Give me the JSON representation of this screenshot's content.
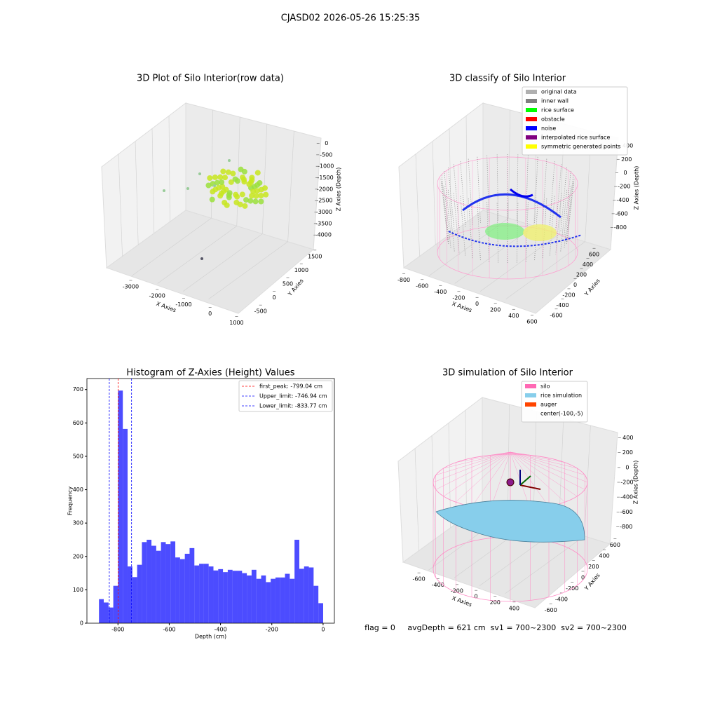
{
  "title": "CJASD02 2026-05-26 15:25:35",
  "status": "flag = 0     avgDepth = 621 cm  sv1 = 700~2300  sv2 = 700~2300",
  "chart_data": [
    {
      "type": "scatter3d",
      "title": "3D Plot of Silo Interior(row data)",
      "xlabel": "X Axies",
      "ylabel": "Y Axies",
      "zlabel": "Z Axies (Depth)",
      "xlim": [
        -3700,
        1200
      ],
      "xticks": [
        -3000,
        -2000,
        -1000,
        0,
        1000
      ],
      "ylim": [
        -700,
        1700
      ],
      "yticks": [
        -500,
        0,
        500,
        1000,
        1500
      ],
      "zlim": [
        -4300,
        200
      ],
      "zticks": [
        -4000,
        -3500,
        -3000,
        -2500,
        -2000,
        -1500,
        -1000,
        -500,
        0
      ]
    },
    {
      "type": "scatter3d",
      "title": "3D classify of Silo Interior",
      "xlabel": "X Axies",
      "ylabel": "Y Axies",
      "zlabel": "Z Axies (Depth)",
      "xlim": [
        -900,
        700
      ],
      "xticks": [
        -800,
        -600,
        -400,
        -200,
        0,
        200,
        400,
        600
      ],
      "ylim": [
        -700,
        700
      ],
      "yticks": [
        -600,
        -400,
        -200,
        0,
        200,
        400,
        600
      ],
      "zlim": [
        -900,
        450
      ],
      "zticks": [
        -800,
        -600,
        -400,
        -200,
        0,
        200,
        400
      ],
      "legend": [
        {
          "name": "original data",
          "color": "#b0b0b0"
        },
        {
          "name": "inner wall",
          "color": "#808080"
        },
        {
          "name": "rice surface",
          "color": "#00ff00"
        },
        {
          "name": "obstacle",
          "color": "#ff0000"
        },
        {
          "name": "noise",
          "color": "#0000ff"
        },
        {
          "name": "interpolated rice surface",
          "color": "#800080"
        },
        {
          "name": "symmetric generated points",
          "color": "#ffff00"
        }
      ]
    },
    {
      "type": "histogram",
      "title": "Histogram of Z-Axies (Height) Values",
      "xlabel": "Depth (cm)",
      "ylabel": "Frequency",
      "color": "#0000ff",
      "bins": [
        -874.0,
        -855.4,
        -836.8,
        -818.2,
        -799.6,
        -781.0,
        -762.4,
        -743.8,
        -725.2,
        -706.6,
        -688.0,
        -669.4,
        -650.8,
        -632.2,
        -613.6,
        -595.0,
        -576.4,
        -557.8,
        -539.2,
        -520.6,
        -502.0,
        -483.4,
        -464.8,
        -446.2,
        -427.6,
        -409.0,
        -390.4,
        -371.8,
        -353.2,
        -334.6,
        -316.0,
        -297.4,
        -278.8,
        -260.2,
        -241.6,
        -223.0,
        -204.4,
        -185.8,
        -167.2,
        -148.6,
        -130.0,
        -111.4,
        -92.8,
        -74.2,
        -55.6,
        -37.0,
        -18.4,
        0.2
      ],
      "counts": [
        72,
        62,
        47,
        112,
        697,
        582,
        170,
        138,
        175,
        243,
        250,
        232,
        217,
        243,
        237,
        245,
        197,
        192,
        208,
        225,
        173,
        178,
        178,
        170,
        158,
        162,
        153,
        160,
        157,
        157,
        150,
        143,
        160,
        133,
        143,
        123,
        133,
        137,
        137,
        148,
        133,
        250,
        163,
        170,
        167,
        112,
        60
      ],
      "xlim": [
        -921,
        44
      ],
      "xticks": [
        -800,
        -600,
        -400,
        -200,
        0
      ],
      "ylim": [
        0,
        733
      ],
      "yticks": [
        0,
        100,
        200,
        300,
        400,
        500,
        600,
        700
      ],
      "lines": [
        {
          "name": "first_peak: -799.04 cm",
          "value": -799.04,
          "color": "#ff0000"
        },
        {
          "name": "Upper_limit: -746.94 cm",
          "value": -746.94,
          "color": "#0000ff"
        },
        {
          "name": "Lower_limit: -833.77 cm",
          "value": -833.77,
          "color": "#0000ff"
        }
      ]
    },
    {
      "type": "surface3d",
      "title": "3D simulation of Silo Interior",
      "xlabel": "X Axies",
      "ylabel": "Y Axies",
      "zlabel": "Z Axies (Depth)",
      "xlim": [
        -700,
        500
      ],
      "xticks": [
        -600,
        -400,
        -200,
        0,
        200,
        400
      ],
      "ylim": [
        -700,
        700
      ],
      "yticks": [
        -600,
        -400,
        -200,
        0,
        200,
        400,
        600
      ],
      "zlim": [
        -900,
        500
      ],
      "zticks": [
        -800,
        -600,
        -400,
        -200,
        0,
        200,
        400
      ],
      "legend": [
        {
          "name": "silo",
          "color": "#ff69b4"
        },
        {
          "name": "rice simulation",
          "color": "#87ceeb"
        },
        {
          "name": "auger",
          "color": "#ff4500"
        },
        {
          "name": "center(-100,-5)"
        }
      ]
    }
  ]
}
